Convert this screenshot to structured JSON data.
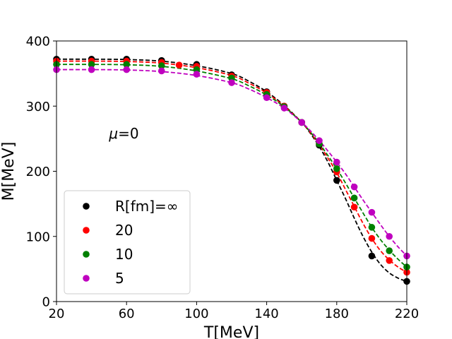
{
  "chart_data": {
    "type": "line",
    "title": "",
    "xlabel": "T[MeV]",
    "ylabel": "M[MeV]",
    "xlim": [
      20,
      220
    ],
    "ylim": [
      0,
      400
    ],
    "xticks": [
      20,
      60,
      100,
      140,
      180,
      220
    ],
    "yticks": [
      0,
      100,
      200,
      300,
      400
    ],
    "xtick_labels": [
      "20",
      "60",
      "100",
      "140",
      "180",
      "220"
    ],
    "ytick_labels": [
      "0",
      "100",
      "200",
      "300",
      "400"
    ],
    "grid": false,
    "legend_position": "lower-left",
    "annotation": {
      "math": "μ",
      "rest": "=0",
      "at": [
        50,
        258
      ]
    },
    "series": [
      {
        "name": "R[fm]=∞",
        "color": "#000000",
        "points": [
          [
            20,
            372
          ],
          [
            40,
            372
          ],
          [
            60,
            372
          ],
          [
            80,
            370
          ],
          [
            100,
            364
          ],
          [
            120,
            348
          ],
          [
            140,
            322
          ],
          [
            150,
            300
          ],
          [
            160,
            275
          ],
          [
            170,
            240
          ],
          [
            180,
            186
          ],
          [
            200,
            70
          ],
          [
            220,
            31
          ]
        ],
        "curve": [
          [
            20,
            372
          ],
          [
            40,
            372
          ],
          [
            60,
            371.5
          ],
          [
            80,
            369
          ],
          [
            100,
            362
          ],
          [
            120,
            350
          ],
          [
            130,
            338
          ],
          [
            140,
            322
          ],
          [
            150,
            301
          ],
          [
            160,
            275
          ],
          [
            165,
            258
          ],
          [
            170,
            238
          ],
          [
            175,
            214
          ],
          [
            180,
            186
          ],
          [
            185,
            158
          ],
          [
            190,
            128
          ],
          [
            195,
            100
          ],
          [
            200,
            76
          ],
          [
            205,
            57
          ],
          [
            210,
            44
          ],
          [
            215,
            36
          ],
          [
            220,
            31
          ]
        ]
      },
      {
        "name": "20",
        "color": "#ff0000",
        "points": [
          [
            20,
            369
          ],
          [
            40,
            369
          ],
          [
            60,
            369
          ],
          [
            80,
            367
          ],
          [
            90,
            363
          ],
          [
            100,
            361
          ],
          [
            120,
            346
          ],
          [
            140,
            321
          ],
          [
            150,
            300
          ],
          [
            160,
            275
          ],
          [
            170,
            242
          ],
          [
            180,
            199
          ],
          [
            190,
            145
          ],
          [
            200,
            97
          ],
          [
            210,
            63
          ],
          [
            220,
            45
          ]
        ],
        "curve": [
          [
            20,
            369
          ],
          [
            40,
            369
          ],
          [
            60,
            368.5
          ],
          [
            80,
            366
          ],
          [
            100,
            359
          ],
          [
            120,
            347
          ],
          [
            130,
            335
          ],
          [
            140,
            320
          ],
          [
            150,
            300
          ],
          [
            160,
            275
          ],
          [
            165,
            259
          ],
          [
            170,
            241
          ],
          [
            175,
            220
          ],
          [
            180,
            198
          ],
          [
            185,
            172
          ],
          [
            190,
            146
          ],
          [
            195,
            120
          ],
          [
            200,
            97
          ],
          [
            205,
            78
          ],
          [
            210,
            64
          ],
          [
            215,
            53
          ],
          [
            220,
            45
          ]
        ]
      },
      {
        "name": "10",
        "color": "#008000",
        "points": [
          [
            20,
            364
          ],
          [
            40,
            364
          ],
          [
            60,
            364
          ],
          [
            80,
            362
          ],
          [
            100,
            356
          ],
          [
            120,
            343
          ],
          [
            140,
            318
          ],
          [
            150,
            299
          ],
          [
            160,
            275
          ],
          [
            170,
            242
          ],
          [
            180,
            204
          ],
          [
            190,
            159
          ],
          [
            200,
            114
          ],
          [
            210,
            78
          ],
          [
            220,
            53
          ]
        ],
        "curve": [
          [
            20,
            364
          ],
          [
            40,
            364
          ],
          [
            60,
            363.5
          ],
          [
            80,
            361
          ],
          [
            100,
            354
          ],
          [
            120,
            342
          ],
          [
            130,
            331
          ],
          [
            140,
            317
          ],
          [
            150,
            299
          ],
          [
            160,
            275
          ],
          [
            165,
            260
          ],
          [
            170,
            243
          ],
          [
            175,
            224
          ],
          [
            180,
            204
          ],
          [
            185,
            182
          ],
          [
            190,
            159
          ],
          [
            195,
            136
          ],
          [
            200,
            114
          ],
          [
            205,
            95
          ],
          [
            210,
            79
          ],
          [
            215,
            65
          ],
          [
            220,
            53
          ]
        ]
      },
      {
        "name": "5",
        "color": "#bf00bf",
        "points": [
          [
            20,
            356
          ],
          [
            40,
            356
          ],
          [
            60,
            356
          ],
          [
            80,
            354
          ],
          [
            100,
            349
          ],
          [
            120,
            336
          ],
          [
            140,
            313
          ],
          [
            150,
            297
          ],
          [
            160,
            275
          ],
          [
            170,
            247
          ],
          [
            180,
            214
          ],
          [
            190,
            176
          ],
          [
            200,
            137
          ],
          [
            210,
            100
          ],
          [
            220,
            70
          ]
        ],
        "curve": [
          [
            20,
            356
          ],
          [
            40,
            356
          ],
          [
            60,
            355.5
          ],
          [
            80,
            353
          ],
          [
            100,
            347
          ],
          [
            120,
            336
          ],
          [
            130,
            326
          ],
          [
            140,
            313
          ],
          [
            150,
            297
          ],
          [
            160,
            275
          ],
          [
            165,
            262
          ],
          [
            170,
            247
          ],
          [
            175,
            231
          ],
          [
            180,
            214
          ],
          [
            185,
            196
          ],
          [
            190,
            176
          ],
          [
            195,
            156
          ],
          [
            200,
            137
          ],
          [
            205,
            118
          ],
          [
            210,
            100
          ],
          [
            215,
            84
          ],
          [
            220,
            70
          ]
        ]
      }
    ]
  }
}
